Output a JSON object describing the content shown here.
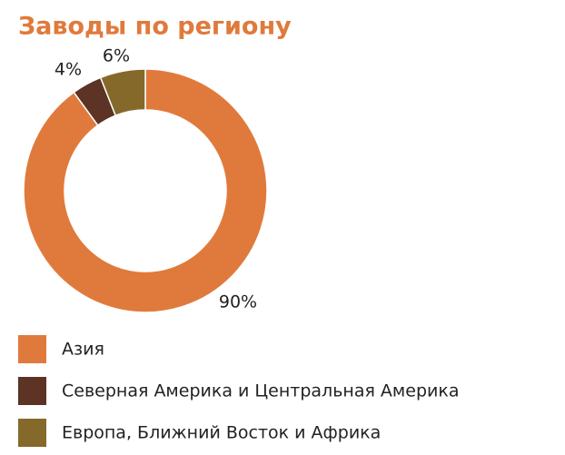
{
  "chart_data": {
    "type": "donut",
    "title": "Заводы по региону",
    "categories": [
      "Азия",
      "Северная Америка и Центральная Америка",
      "Европа, Ближний Восток и Африка"
    ],
    "values": [
      90,
      4,
      6
    ],
    "value_labels": [
      "90%",
      "4%",
      "6%"
    ],
    "colors": [
      "#e07a3c",
      "#5c3324",
      "#85692a"
    ]
  }
}
